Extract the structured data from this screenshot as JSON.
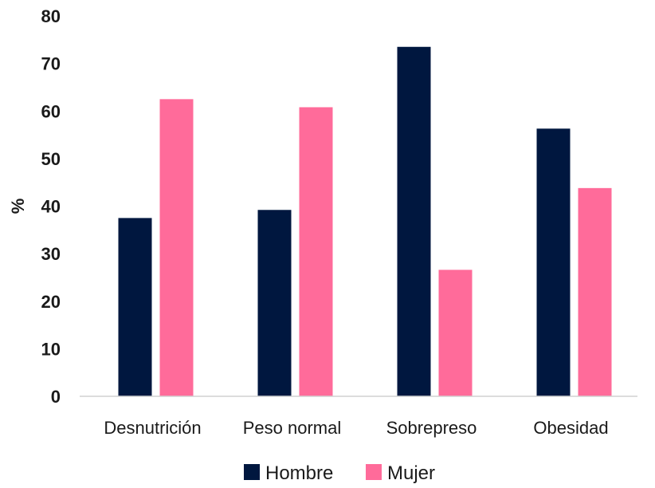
{
  "chart_data": {
    "type": "bar",
    "title": "",
    "xlabel": "",
    "ylabel": "%",
    "ylim": [
      0,
      80
    ],
    "yticks": [
      "0",
      "10",
      "20",
      "30",
      "40",
      "50",
      "60",
      "70",
      "80"
    ],
    "grid": false,
    "legend_position": "bottom",
    "categories": [
      "Desnutrición",
      "Peso normal",
      "Sobrepreso",
      "Obesidad"
    ],
    "series": [
      {
        "name": "Hombre",
        "color": "#00173f",
        "values": [
          37.5,
          39.2,
          73.5,
          56.3
        ]
      },
      {
        "name": "Mujer",
        "color": "#ff6b9a",
        "values": [
          62.5,
          60.8,
          26.6,
          43.8
        ]
      }
    ]
  }
}
